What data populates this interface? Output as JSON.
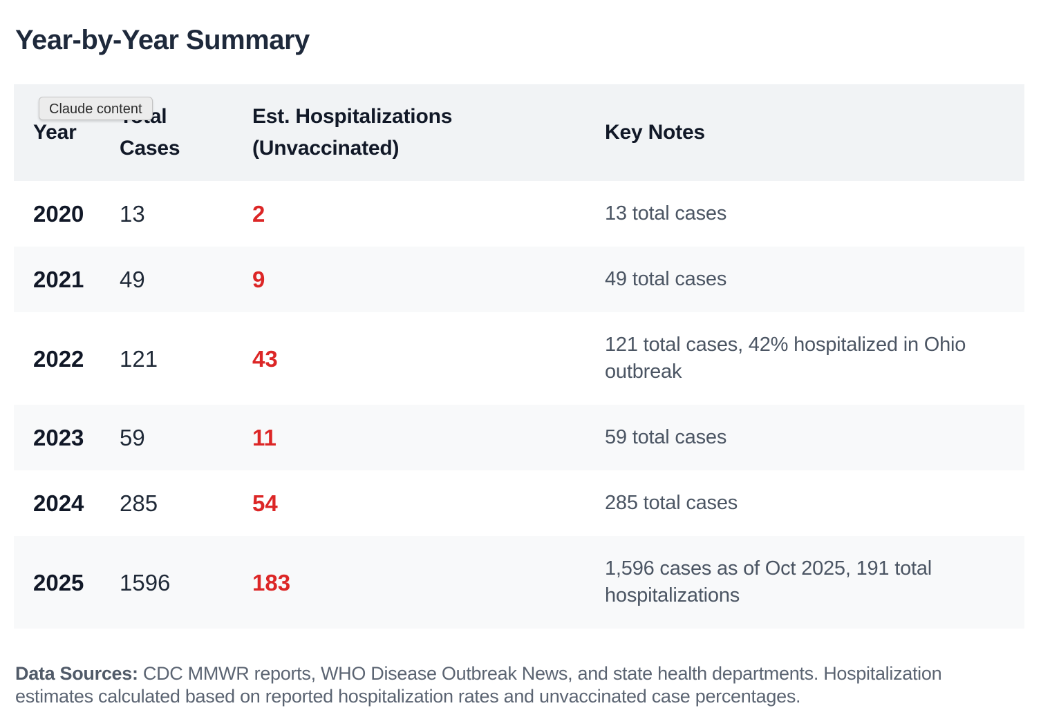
{
  "page_title": "Year-by-Year Summary",
  "tooltip": {
    "text": "Claude content"
  },
  "table": {
    "columns": [
      {
        "key": "year",
        "label": "Year"
      },
      {
        "key": "cases",
        "label": "Total Cases"
      },
      {
        "key": "hosp",
        "label": "Est. Hospitalizations (Unvaccinated)"
      },
      {
        "key": "notes",
        "label": "Key Notes"
      }
    ],
    "rows": [
      {
        "year": "2020",
        "cases": "13",
        "hosp": "2",
        "notes": "13 total cases"
      },
      {
        "year": "2021",
        "cases": "49",
        "hosp": "9",
        "notes": "49 total cases"
      },
      {
        "year": "2022",
        "cases": "121",
        "hosp": "43",
        "notes": "121 total cases, 42% hospitalized in Ohio outbreak"
      },
      {
        "year": "2023",
        "cases": "59",
        "hosp": "11",
        "notes": "59 total cases"
      },
      {
        "year": "2024",
        "cases": "285",
        "hosp": "54",
        "notes": "285 total cases"
      },
      {
        "year": "2025",
        "cases": "1596",
        "hosp": "183",
        "notes": "1,596 cases as of Oct 2025, 191 total hospitalizations"
      }
    ]
  },
  "footer": {
    "label": "Data Sources:",
    "text": "CDC MMWR reports, WHO Disease Outbreak News, and state health departments. Hospitalization estimates calculated based on reported hospitalization rates and unvaccinated case percentages."
  },
  "chart_data": {
    "type": "table",
    "title": "Year-by-Year Summary",
    "columns": [
      "Year",
      "Total Cases",
      "Est. Hospitalizations (Unvaccinated)",
      "Key Notes"
    ],
    "rows": [
      [
        "2020",
        13,
        2,
        "13 total cases"
      ],
      [
        "2021",
        49,
        9,
        "49 total cases"
      ],
      [
        "2022",
        121,
        43,
        "121 total cases, 42% hospitalized in Ohio outbreak"
      ],
      [
        "2023",
        59,
        11,
        "59 total cases"
      ],
      [
        "2024",
        285,
        54,
        "285 total cases"
      ],
      [
        "2025",
        1596,
        183,
        "1,596 cases as of Oct 2025, 191 total hospitalizations"
      ]
    ]
  },
  "colors": {
    "accent_red": "#dc2626",
    "header_bg": "#f1f3f5",
    "row_alt_bg": "#f8f9fa",
    "title_text": "#1e293b",
    "notes_text": "#4b5563",
    "footer_text": "#5b6472",
    "tooltip_bg": "#ececec"
  }
}
